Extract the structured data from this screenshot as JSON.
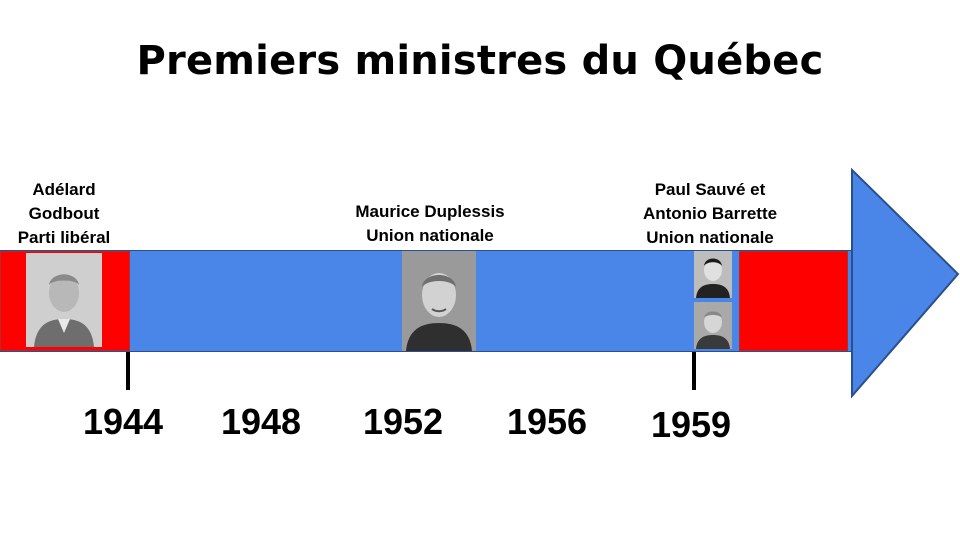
{
  "title": "Premiers ministres du Québec",
  "events": [
    {
      "lines": [
        "Adélard",
        "Godbout",
        "Parti libéral"
      ]
    },
    {
      "lines": [
        "Maurice Duplessis",
        "Union nationale"
      ]
    },
    {
      "lines": [
        "Paul Sauvé et",
        "Antonio Barrette",
        "Union nationale"
      ]
    }
  ],
  "years": [
    "1944",
    "1948",
    "1952",
    "1956",
    "1959"
  ],
  "colors": {
    "band": "#4a86e8",
    "liberal": "#ff0000"
  }
}
